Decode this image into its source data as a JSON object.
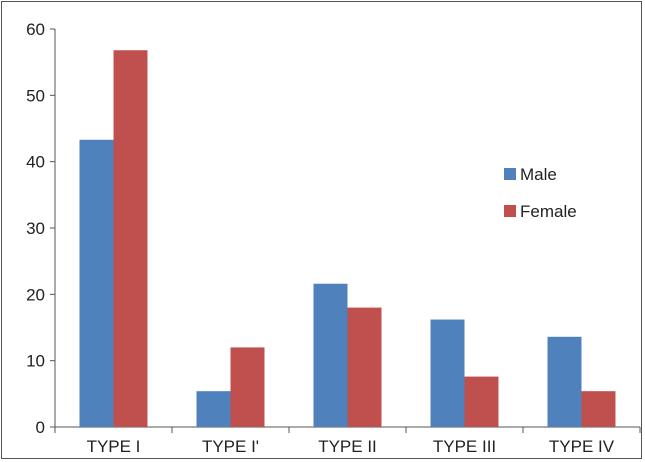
{
  "chart_data": {
    "type": "bar",
    "categories": [
      "TYPE I",
      "TYPE I'",
      "TYPE II",
      "TYPE III",
      "TYPE IV"
    ],
    "series": [
      {
        "name": "Male",
        "values": [
          43.3,
          5.4,
          21.6,
          16.2,
          13.6
        ],
        "color": "#4f81bd"
      },
      {
        "name": "Female",
        "values": [
          56.8,
          12.0,
          18.0,
          7.6,
          5.4
        ],
        "color": "#c0504d"
      }
    ],
    "ylim": [
      0,
      60
    ],
    "yticks": [
      0,
      10,
      20,
      30,
      40,
      50,
      60
    ],
    "grid": false,
    "legend_position": "right",
    "title": "",
    "xlabel": "",
    "ylabel": ""
  }
}
